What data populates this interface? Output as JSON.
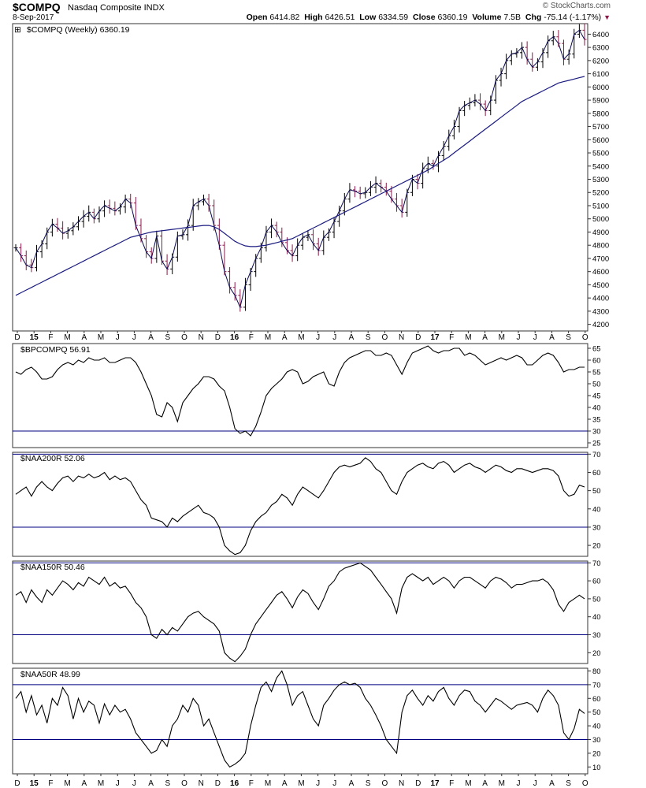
{
  "header": {
    "symbol": "$COMPQ",
    "name": "Nasdaq Composite INDX",
    "date": "8-Sep-2017",
    "copyright": "© StockCharts.com",
    "open_label": "Open",
    "open": "6414.82",
    "high_label": "High",
    "high": "6426.51",
    "low_label": "Low",
    "low": "6334.59",
    "close_label": "Close",
    "close": "6360.19",
    "volume_label": "Volume",
    "volume": "7.5B",
    "chg_label": "Chg",
    "chg": "-75.14 (-1.17%)"
  },
  "colors": {
    "price_bar": "#000000",
    "down_bar": "#8b1a4a",
    "moving_average": "#1a1a80",
    "indicator": "#000000",
    "ref_line": "#000080"
  },
  "x_axis": {
    "ticks": [
      "D",
      "15",
      "F",
      "M",
      "A",
      "M",
      "J",
      "J",
      "A",
      "S",
      "O",
      "N",
      "D",
      "16",
      "F",
      "M",
      "A",
      "M",
      "J",
      "J",
      "A",
      "S",
      "O",
      "N",
      "D",
      "17",
      "F",
      "M",
      "A",
      "M",
      "J",
      "J",
      "A",
      "S",
      "O"
    ],
    "year_ticks": [
      "15",
      "16",
      "17"
    ]
  },
  "chart_data": [
    {
      "type": "ohlc",
      "title": "$COMPQ (Weekly) 6360.19",
      "y_ticks": [
        4200,
        4300,
        4400,
        4500,
        4600,
        4700,
        4800,
        4900,
        5000,
        5100,
        5200,
        5300,
        5400,
        5500,
        5600,
        5700,
        5800,
        5900,
        6000,
        6100,
        6200,
        6300,
        6400
      ],
      "ylim": [
        4150,
        6480
      ],
      "series": [
        {
          "name": "close",
          "values": [
            4780,
            4720,
            4650,
            4630,
            4750,
            4810,
            4900,
            4960,
            4930,
            4890,
            4910,
            4940,
            4980,
            5020,
            5050,
            5000,
            5060,
            5100,
            5080,
            5060,
            5090,
            5150,
            5120,
            4950,
            4850,
            4750,
            4700,
            4870,
            4680,
            4620,
            4710,
            4870,
            4880,
            4950,
            5100,
            5130,
            5150,
            5100,
            4950,
            4800,
            4600,
            4480,
            4420,
            4330,
            4500,
            4600,
            4700,
            4780,
            4900,
            4950,
            4900,
            4820,
            4760,
            4720,
            4800,
            4860,
            4880,
            4810,
            4760,
            4860,
            4900,
            4980,
            5060,
            5150,
            5220,
            5210,
            5190,
            5200,
            5240,
            5270,
            5240,
            5210,
            5150,
            5100,
            5050,
            5200,
            5300,
            5270,
            5380,
            5420,
            5400,
            5480,
            5550,
            5630,
            5700,
            5820,
            5860,
            5880,
            5900,
            5870,
            5820,
            5900,
            6050,
            6100,
            6200,
            6250,
            6260,
            6300,
            6210,
            6150,
            6190,
            6260,
            6350,
            6380,
            6330,
            6210,
            6250,
            6400,
            6430,
            6360
          ]
        },
        {
          "name": "40-week moving average",
          "values": [
            4420,
            4440,
            4460,
            4480,
            4500,
            4520,
            4540,
            4560,
            4580,
            4600,
            4620,
            4640,
            4660,
            4680,
            4700,
            4720,
            4740,
            4760,
            4780,
            4800,
            4820,
            4840,
            4860,
            4870,
            4880,
            4890,
            4900,
            4905,
            4910,
            4915,
            4920,
            4925,
            4930,
            4935,
            4940,
            4945,
            4950,
            4950,
            4940,
            4920,
            4890,
            4860,
            4830,
            4810,
            4795,
            4790,
            4790,
            4795,
            4800,
            4810,
            4820,
            4830,
            4840,
            4850,
            4870,
            4890,
            4910,
            4930,
            4950,
            4970,
            4990,
            5010,
            5030,
            5050,
            5070,
            5090,
            5110,
            5130,
            5150,
            5170,
            5190,
            5210,
            5230,
            5250,
            5270,
            5290,
            5310,
            5330,
            5350,
            5370,
            5395,
            5420,
            5445,
            5470,
            5500,
            5530,
            5560,
            5590,
            5620,
            5650,
            5680,
            5710,
            5740,
            5770,
            5800,
            5830,
            5860,
            5890,
            5910,
            5930,
            5950,
            5970,
            5990,
            6010,
            6030,
            6040,
            6050,
            6060,
            6070,
            6080
          ]
        }
      ]
    },
    {
      "type": "line",
      "title": "$BPCOMPQ 56.91",
      "y_ticks": [
        25,
        30,
        35,
        40,
        45,
        50,
        55,
        60,
        65
      ],
      "ylim": [
        23,
        67
      ],
      "reference_lines": [
        30
      ],
      "series": [
        {
          "name": "$BPCOMPQ",
          "values": [
            55,
            54,
            56,
            57,
            55,
            52,
            52,
            53,
            56,
            58,
            59,
            58,
            60,
            59,
            61,
            60,
            60,
            61,
            59,
            59,
            60,
            61,
            61,
            59,
            55,
            50,
            45,
            37,
            36,
            42,
            40,
            34,
            42,
            45,
            48,
            50,
            53,
            53,
            52,
            49,
            47,
            40,
            31,
            29,
            30,
            28,
            32,
            38,
            45,
            48,
            50,
            52,
            55,
            56,
            55,
            50,
            51,
            53,
            54,
            55,
            50,
            49,
            55,
            59,
            61,
            62,
            63,
            64,
            64,
            62,
            62,
            63,
            62,
            58,
            54,
            59,
            63,
            64,
            65,
            66,
            64,
            63,
            64,
            64,
            65,
            65,
            62,
            63,
            62,
            60,
            58,
            59,
            60,
            61,
            60,
            61,
            62,
            61,
            58,
            58,
            60,
            62,
            63,
            62,
            59,
            55,
            56,
            56,
            57,
            57
          ]
        }
      ]
    },
    {
      "type": "line",
      "title": "$NAA200R 52.06",
      "y_ticks": [
        20,
        30,
        40,
        50,
        60,
        70
      ],
      "ylim": [
        14,
        71
      ],
      "reference_lines": [
        30,
        70
      ],
      "series": [
        {
          "name": "$NAA200R",
          "values": [
            48,
            50,
            52,
            47,
            52,
            55,
            52,
            50,
            54,
            57,
            58,
            55,
            58,
            57,
            59,
            57,
            58,
            60,
            56,
            58,
            56,
            57,
            55,
            50,
            45,
            42,
            35,
            34,
            33,
            30,
            35,
            33,
            36,
            38,
            40,
            42,
            38,
            37,
            35,
            30,
            20,
            17,
            15,
            16,
            20,
            28,
            33,
            36,
            38,
            42,
            44,
            48,
            46,
            42,
            48,
            52,
            50,
            48,
            46,
            50,
            55,
            60,
            63,
            64,
            63,
            64,
            65,
            68,
            66,
            62,
            60,
            55,
            50,
            48,
            55,
            60,
            62,
            64,
            65,
            63,
            62,
            65,
            66,
            64,
            60,
            62,
            64,
            65,
            63,
            62,
            60,
            62,
            64,
            63,
            61,
            60,
            62,
            62,
            61,
            60,
            61,
            62,
            62,
            61,
            58,
            50,
            47,
            48,
            53,
            52
          ]
        }
      ]
    },
    {
      "type": "line",
      "title": "$NAA150R 50.46",
      "y_ticks": [
        20,
        30,
        40,
        50,
        60,
        70
      ],
      "ylim": [
        14,
        71
      ],
      "reference_lines": [
        30,
        70
      ],
      "series": [
        {
          "name": "$NAA150R",
          "values": [
            52,
            54,
            48,
            55,
            51,
            48,
            55,
            52,
            56,
            60,
            58,
            55,
            59,
            57,
            62,
            60,
            58,
            62,
            57,
            59,
            56,
            57,
            53,
            48,
            45,
            40,
            30,
            28,
            33,
            30,
            34,
            32,
            36,
            40,
            42,
            43,
            40,
            38,
            36,
            32,
            20,
            17,
            15,
            18,
            22,
            30,
            36,
            40,
            44,
            48,
            52,
            54,
            50,
            45,
            51,
            55,
            53,
            48,
            44,
            50,
            57,
            60,
            65,
            67,
            68,
            69,
            70,
            68,
            66,
            62,
            58,
            54,
            50,
            42,
            56,
            62,
            64,
            62,
            60,
            62,
            58,
            60,
            62,
            60,
            56,
            60,
            62,
            62,
            60,
            58,
            56,
            60,
            62,
            61,
            59,
            56,
            58,
            58,
            59,
            60,
            60,
            61,
            59,
            55,
            47,
            43,
            48,
            50,
            52,
            50
          ]
        }
      ]
    },
    {
      "type": "line",
      "title": "$NAA50R 48.99",
      "y_ticks": [
        10,
        20,
        30,
        40,
        50,
        60,
        70,
        80
      ],
      "ylim": [
        5,
        82
      ],
      "reference_lines": [
        30,
        70
      ],
      "series": [
        {
          "name": "$NAA50R",
          "values": [
            60,
            65,
            50,
            62,
            48,
            55,
            42,
            60,
            55,
            68,
            62,
            45,
            60,
            50,
            58,
            55,
            42,
            56,
            48,
            55,
            50,
            52,
            45,
            35,
            30,
            25,
            20,
            22,
            30,
            25,
            40,
            45,
            55,
            50,
            60,
            55,
            40,
            45,
            35,
            25,
            15,
            10,
            12,
            15,
            20,
            40,
            55,
            68,
            72,
            65,
            75,
            80,
            70,
            55,
            62,
            65,
            55,
            45,
            40,
            55,
            60,
            66,
            70,
            72,
            70,
            71,
            68,
            60,
            55,
            48,
            40,
            30,
            25,
            20,
            50,
            62,
            66,
            60,
            55,
            62,
            58,
            65,
            68,
            60,
            55,
            62,
            66,
            65,
            58,
            55,
            50,
            55,
            60,
            58,
            55,
            52,
            55,
            56,
            57,
            55,
            50,
            60,
            66,
            62,
            55,
            35,
            30,
            38,
            52,
            49
          ]
        }
      ]
    }
  ]
}
